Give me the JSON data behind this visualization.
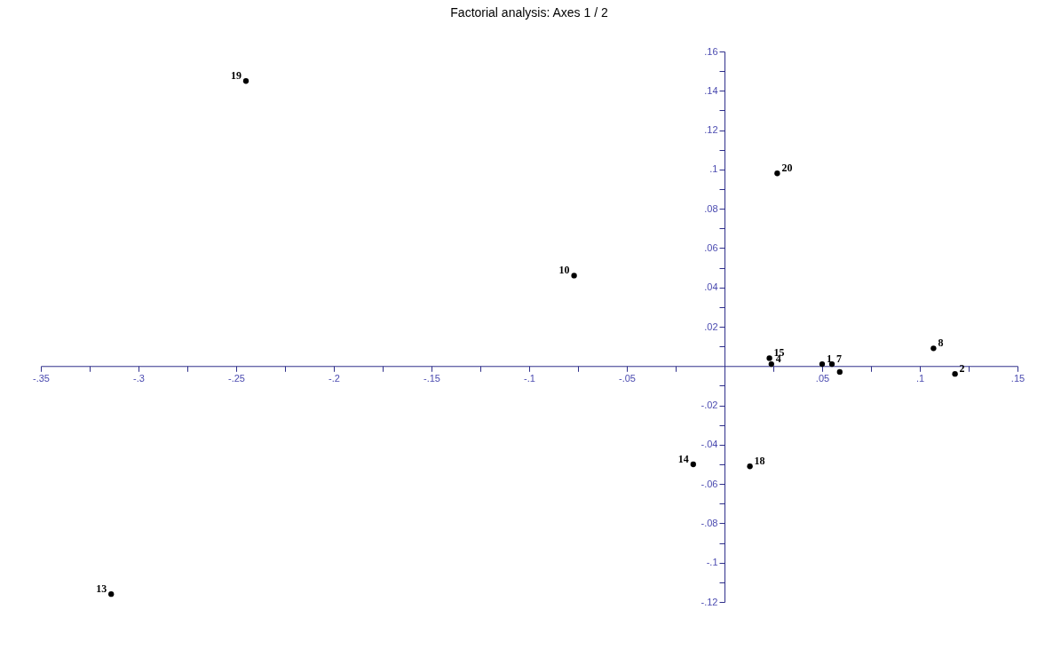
{
  "chart_data": {
    "type": "scatter",
    "title": "Factorial analysis: Axes 1 / 2",
    "x": [
      -0.245,
      0.027,
      -0.077,
      0.023,
      0.024,
      0.05,
      0.055,
      0.059,
      0.107,
      0.118,
      0.013,
      -0.314,
      -0.016
    ],
    "series": [
      {
        "color": "#000000",
        "values": [
          0.145,
          0.098,
          0.046,
          0.004,
          0.001,
          0.001,
          0.001,
          -0.003,
          0.009,
          -0.004,
          -0.051,
          -0.116,
          -0.05
        ]
      }
    ],
    "marker": "circle",
    "grid": false,
    "xlim": [
      -0.35,
      0.15
    ],
    "xticks": [
      {
        "value": -0.35,
        "label": "-.35"
      },
      {
        "value": -0.325,
        "label": null
      },
      {
        "value": -0.3,
        "label": "-.3"
      },
      {
        "value": -0.275,
        "label": null
      },
      {
        "value": -0.25,
        "label": "-.25"
      },
      {
        "value": -0.225,
        "label": null
      },
      {
        "value": -0.2,
        "label": "-.2"
      },
      {
        "value": -0.175,
        "label": null
      },
      {
        "value": -0.15,
        "label": "-.15"
      },
      {
        "value": -0.125,
        "label": null
      },
      {
        "value": -0.1,
        "label": "-.1"
      },
      {
        "value": -0.075,
        "label": null
      },
      {
        "value": -0.05,
        "label": "-.05"
      },
      {
        "value": -0.025,
        "label": null
      },
      {
        "value": 0.025,
        "label": null
      },
      {
        "value": 0.05,
        "label": ".05"
      },
      {
        "value": 0.075,
        "label": null
      },
      {
        "value": 0.1,
        "label": ".1"
      },
      {
        "value": 0.125,
        "label": null
      },
      {
        "value": 0.15,
        "label": ".15"
      }
    ],
    "ylim": [
      -0.12,
      0.16
    ],
    "yticks": [
      {
        "value": -0.12,
        "label": "-.12"
      },
      {
        "value": -0.11,
        "label": null
      },
      {
        "value": -0.1,
        "label": "-.1"
      },
      {
        "value": -0.09,
        "label": null
      },
      {
        "value": -0.08,
        "label": "-.08"
      },
      {
        "value": -0.07,
        "label": null
      },
      {
        "value": -0.06,
        "label": "-.06"
      },
      {
        "value": -0.05,
        "label": null
      },
      {
        "value": -0.04,
        "label": "-.04"
      },
      {
        "value": -0.03,
        "label": null
      },
      {
        "value": -0.02,
        "label": "-.02"
      },
      {
        "value": -0.01,
        "label": null
      },
      {
        "value": 0.01,
        "label": null
      },
      {
        "value": 0.02,
        "label": ".02"
      },
      {
        "value": 0.03,
        "label": null
      },
      {
        "value": 0.04,
        "label": ".04"
      },
      {
        "value": 0.05,
        "label": null
      },
      {
        "value": 0.06,
        "label": ".06"
      },
      {
        "value": 0.07,
        "label": null
      },
      {
        "value": 0.08,
        "label": ".08"
      },
      {
        "value": 0.09,
        "label": null
      },
      {
        "value": 0.1,
        "label": ".1"
      },
      {
        "value": 0.11,
        "label": null
      },
      {
        "value": 0.12,
        "label": ".12"
      },
      {
        "value": 0.13,
        "label": null
      },
      {
        "value": 0.14,
        "label": ".14"
      },
      {
        "value": 0.15,
        "label": null
      },
      {
        "value": 0.16,
        "label": ".16"
      }
    ],
    "annotations": [
      {
        "text": "19",
        "x": -0.245,
        "y": 0.145
      },
      {
        "text": "20",
        "x": 0.027,
        "y": 0.098
      },
      {
        "text": "10",
        "x": -0.077,
        "y": 0.046
      },
      {
        "text": "15",
        "x": 0.023,
        "y": 0.004
      },
      {
        "text": "4",
        "x": 0.024,
        "y": 0.001
      },
      {
        "text": "1",
        "x": 0.05,
        "y": 0.001
      },
      {
        "text": "7",
        "x": 0.055,
        "y": 0.001
      },
      {
        "text": "8",
        "x": 0.107,
        "y": 0.009
      },
      {
        "text": "2",
        "x": 0.118,
        "y": -0.004
      },
      {
        "text": "14",
        "x": -0.016,
        "y": -0.05
      },
      {
        "text": "18",
        "x": 0.013,
        "y": -0.051
      },
      {
        "text": "13",
        "x": -0.314,
        "y": -0.116
      }
    ]
  }
}
